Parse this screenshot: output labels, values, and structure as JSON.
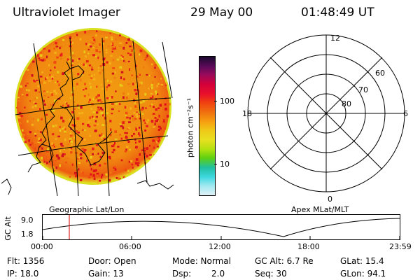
{
  "header": {
    "instrument": "Ultraviolet Imager",
    "date": "29 May 00",
    "time": "01:48:49 UT"
  },
  "colorbar": {
    "unit_label": "photon cm⁻²s⁻¹",
    "tick_100": "100",
    "tick_10": "10",
    "colors": [
      "#1a0a2e",
      "#5a0a5a",
      "#9a0a5a",
      "#d4003a",
      "#e8102a",
      "#f04010",
      "#f07010",
      "#f6a010",
      "#f0c818",
      "#e8e020",
      "#b0e010",
      "#60d010",
      "#20c0a0",
      "#40d8e0",
      "#a0e8f0",
      "#e0f0f6"
    ]
  },
  "left_panel": {
    "caption": "Geographic Lat/Lon"
  },
  "right_panel": {
    "caption": "Apex MLat/MLT",
    "mlt_labels": {
      "top": "12",
      "left": "18",
      "right": "6",
      "bottom": "0"
    },
    "mlat_labels": [
      "60",
      "70",
      "80"
    ]
  },
  "timeline": {
    "ylabel": "GC Alt",
    "ytick_top": "9.0",
    "ytick_bottom": "1.8",
    "xticks": [
      "00:00",
      "06:00",
      "12:00",
      "18:00",
      "23:59"
    ],
    "marker_color": "#e02020"
  },
  "footer": {
    "flt": "Flt: 1356",
    "ip": "IP: 18.0",
    "door": "Door: Open",
    "gain": "Gain: 13",
    "mode": "Mode: Normal",
    "dsp_label": "Dsp:",
    "dsp_value": "2.0",
    "gcalt": "GC Alt: 6.7 Re",
    "seq": "Seq: 30",
    "glat": "GLat: 15.4",
    "glon": "GLon: 94.1"
  }
}
